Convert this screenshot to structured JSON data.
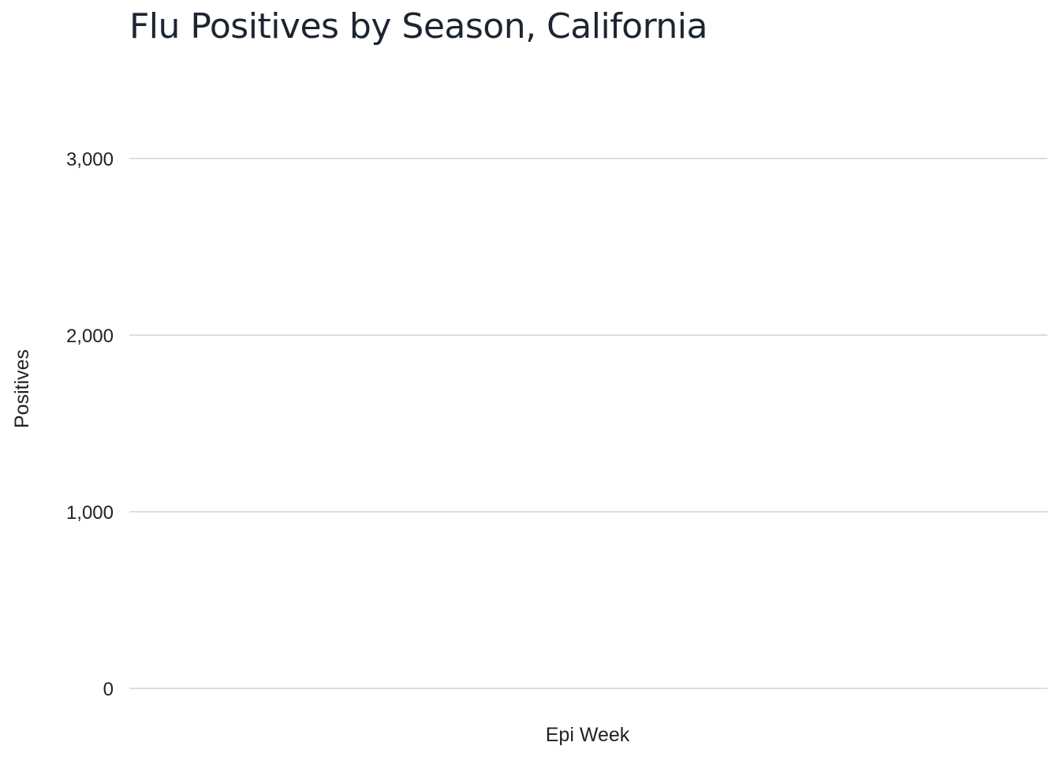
{
  "chart_data": {
    "type": "line",
    "title": "Flu Positives by Season, California",
    "xlabel": "Epi Week",
    "ylabel": "Positives",
    "ylim": [
      0,
      3000
    ],
    "y_ticks": [
      {
        "value": 0,
        "label": "0"
      },
      {
        "value": 1000,
        "label": "1,000"
      },
      {
        "value": 2000,
        "label": "2,000"
      },
      {
        "value": 3000,
        "label": "3,000"
      }
    ],
    "x_ticks": [],
    "series": [],
    "grid": "horizontal",
    "legend": "none",
    "colors": {
      "title": "#1c2530",
      "text": "#222222",
      "grid": "#d3d3d3",
      "background": "#ffffff"
    }
  }
}
